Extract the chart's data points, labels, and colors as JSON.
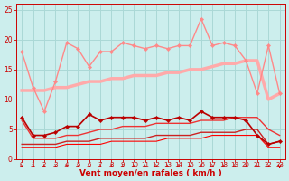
{
  "title": "",
  "xlabel": "Vent moyen/en rafales ( km/h )",
  "bg_color": "#cceeed",
  "grid_color": "#aad8d6",
  "ylim": [
    0,
    26
  ],
  "yticks": [
    0,
    5,
    10,
    15,
    20,
    25
  ],
  "xticks": [
    0,
    1,
    2,
    3,
    4,
    5,
    6,
    7,
    8,
    9,
    10,
    11,
    12,
    13,
    14,
    15,
    16,
    17,
    18,
    19,
    20,
    21,
    22,
    23
  ],
  "lines": [
    {
      "y": [
        18,
        12,
        8,
        13,
        19.5,
        18.5,
        15.5,
        18,
        18,
        19.5,
        19,
        18.5,
        19,
        18.5,
        19,
        19,
        23.5,
        19,
        19.5,
        19,
        16.5,
        11,
        19,
        11
      ],
      "color": "#ff8888",
      "lw": 1.0,
      "marker": "D",
      "ms": 2.2,
      "zorder": 4
    },
    {
      "y": [
        11.5,
        11.5,
        11.5,
        12,
        12,
        12.5,
        13,
        13,
        13.5,
        13.5,
        14,
        14,
        14,
        14.5,
        14.5,
        15,
        15,
        15.5,
        16,
        16,
        16.5,
        16.5,
        10,
        11
      ],
      "color": "#ffaaaa",
      "lw": 2.5,
      "marker": null,
      "ms": 0,
      "zorder": 3
    },
    {
      "y": [
        7,
        4,
        4,
        4.5,
        5.5,
        5.5,
        7.5,
        6.5,
        7,
        7,
        7,
        6.5,
        7,
        6.5,
        7,
        6.5,
        8,
        7,
        7,
        7,
        6.5,
        4,
        2.5,
        3
      ],
      "color": "#bb0000",
      "lw": 1.2,
      "marker": "D",
      "ms": 2.2,
      "zorder": 5
    },
    {
      "y": [
        6.5,
        3.5,
        3.5,
        3.5,
        4,
        4,
        4.5,
        5,
        5,
        5.5,
        5.5,
        5.5,
        6,
        6,
        6,
        6,
        6.5,
        6.5,
        6.5,
        7,
        7,
        7,
        5,
        4
      ],
      "color": "#ee3333",
      "lw": 1.0,
      "marker": null,
      "ms": 0,
      "zorder": 4
    },
    {
      "y": [
        2.5,
        2.5,
        2.5,
        2.5,
        3,
        3,
        3,
        3.5,
        3.5,
        3.5,
        3.5,
        3.5,
        4,
        4,
        4,
        4,
        4.5,
        4.5,
        4.5,
        4.5,
        5,
        5,
        2.5,
        3
      ],
      "color": "#cc2222",
      "lw": 1.0,
      "marker": null,
      "ms": 0,
      "zorder": 4
    },
    {
      "y": [
        2,
        2,
        2,
        2,
        2.5,
        2.5,
        2.5,
        2.5,
        3,
        3,
        3,
        3,
        3,
        3.5,
        3.5,
        3.5,
        3.5,
        4,
        4,
        4,
        4,
        4,
        2,
        2
      ],
      "color": "#ff0000",
      "lw": 0.8,
      "marker": null,
      "ms": 0,
      "zorder": 3
    }
  ],
  "arrow_color": "#cc0000",
  "axis_label_color": "#cc0000",
  "tick_color": "#cc0000",
  "xlabel_fontsize": 6.5,
  "tick_fontsize": 5.0
}
